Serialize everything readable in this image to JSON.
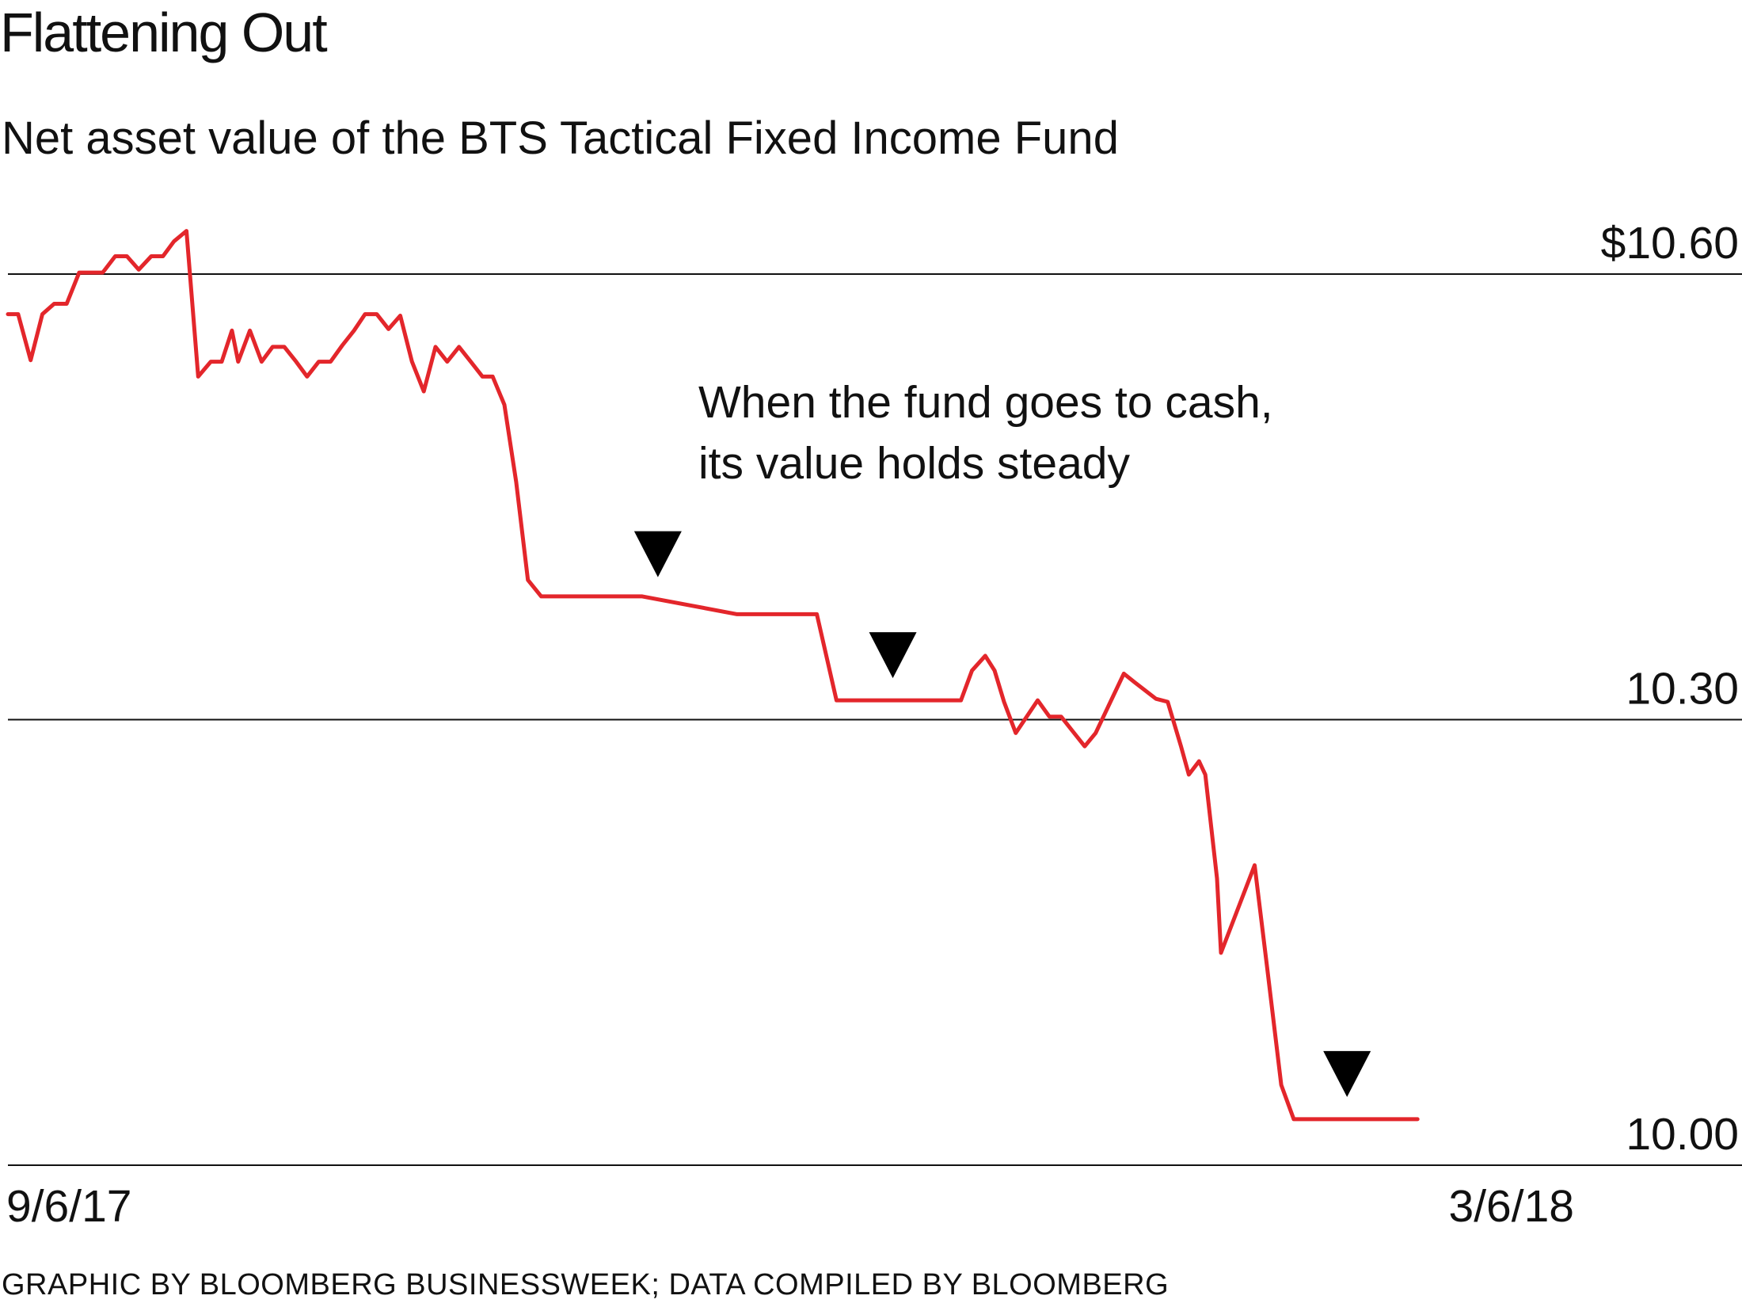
{
  "header": {
    "title": "Flattening Out",
    "subtitle": "Net asset value of the BTS Tactical Fixed Income Fund"
  },
  "annotation": {
    "line1": "When the fund goes to cash,",
    "line2": "its value holds steady"
  },
  "footer": {
    "source": "GRAPHIC BY BLOOMBERG BUSINESSWEEK; DATA COMPILED BY BLOOMBERG"
  },
  "colors": {
    "line": "#e3262b",
    "axis": "#111111",
    "marker": "#000000"
  },
  "chart_data": {
    "type": "line",
    "title": "Flattening Out",
    "subtitle": "Net asset value of the BTS Tactical Fixed Income Fund",
    "xlabel": "",
    "ylabel": "",
    "x_tick_labels": [
      "9/6/17",
      "3/6/18"
    ],
    "x_range": [
      0,
      200
    ],
    "ylim": [
      10.0,
      10.6
    ],
    "y_ticks": [
      {
        "value": 10.6,
        "label": "$10.60"
      },
      {
        "value": 10.3,
        "label": "10.30"
      },
      {
        "value": 10.0,
        "label": "10.00"
      }
    ],
    "grid": true,
    "markers_at_x": [
      83,
      113,
      171
    ],
    "annotation": "When the fund goes to cash, its value holds steady",
    "series": [
      {
        "name": "Net asset value",
        "x": [
          0,
          1.3,
          2.9,
          4.4,
          5.9,
          7.5,
          9.1,
          10.6,
          12.1,
          13.7,
          15.2,
          16.7,
          18.3,
          19.8,
          21.2,
          22.8,
          24.3,
          25.9,
          27.3,
          28.6,
          29.4,
          30.9,
          32.4,
          33.8,
          35.3,
          36.8,
          38.2,
          39.7,
          41.2,
          42.7,
          44.2,
          45.6,
          47.1,
          48.6,
          50.1,
          51.6,
          53.1,
          54.6,
          56.1,
          57.6,
          59.1,
          60.6,
          61.9,
          63.4,
          64.9,
          66.4,
          68.1,
          70.0,
          71.0,
          81.0,
          93.1,
          103.3,
          105.8,
          106.6,
          121.7,
          123.1,
          124.8,
          126.0,
          127.2,
          128.7,
          131.5,
          133.0,
          134.5,
          136.0,
          137.5,
          138.9,
          142.5,
          143.9,
          146.6,
          148.1,
          149.8,
          150.8,
          152.1,
          152.9,
          154.4,
          154.9,
          159.2,
          160.8,
          162.6,
          164.2,
          165.6,
          167.1,
          168.6,
          170.2,
          180.0
        ],
        "values": [
          10.573,
          10.573,
          10.542,
          10.573,
          10.58,
          10.58,
          10.601,
          10.601,
          10.601,
          10.612,
          10.612,
          10.603,
          10.612,
          10.612,
          10.622,
          10.629,
          10.531,
          10.541,
          10.541,
          10.562,
          10.541,
          10.562,
          10.541,
          10.551,
          10.551,
          10.541,
          10.531,
          10.541,
          10.541,
          10.552,
          10.562,
          10.573,
          10.573,
          10.563,
          10.572,
          10.541,
          10.521,
          10.551,
          10.541,
          10.551,
          10.541,
          10.531,
          10.531,
          10.512,
          10.46,
          10.394,
          10.383,
          10.383,
          10.383,
          10.383,
          10.371,
          10.371,
          10.313,
          10.313,
          10.313,
          10.333,
          10.343,
          10.333,
          10.312,
          10.291,
          10.313,
          10.302,
          10.302,
          10.292,
          10.282,
          10.291,
          10.331,
          10.325,
          10.314,
          10.312,
          10.282,
          10.263,
          10.272,
          10.263,
          10.193,
          10.143,
          10.202,
          10.133,
          10.054,
          10.031,
          10.031,
          10.031,
          10.031,
          10.031,
          10.031
        ]
      }
    ]
  }
}
